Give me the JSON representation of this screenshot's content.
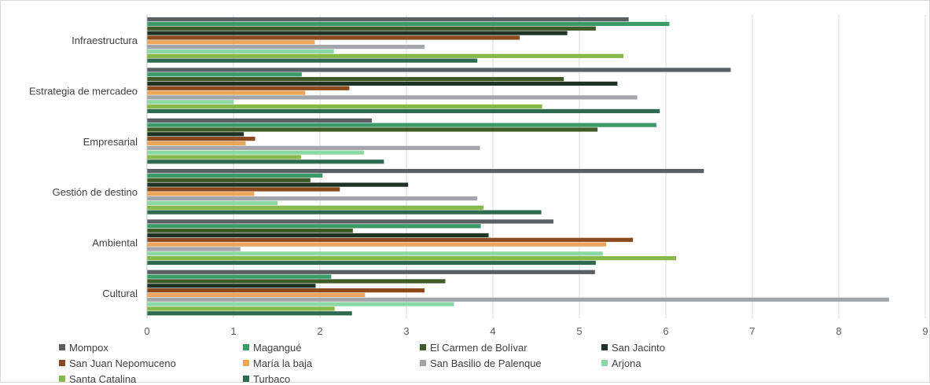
{
  "chart_data": {
    "type": "bar",
    "orientation": "horizontal",
    "categories": [
      "Infraestructura",
      "Estrategia de mercadeo",
      "Empresarial",
      "Gestión de destino",
      "Ambiental",
      "Cultural"
    ],
    "xlim": [
      0,
      9
    ],
    "xticks": [
      "0",
      "1",
      "2",
      "3",
      "4",
      "5",
      "6",
      "7",
      "8",
      "9"
    ],
    "grid": "vertical",
    "legend_position": "bottom",
    "series": [
      {
        "name": "Mompox",
        "color": "#595f63",
        "values": [
          5.57,
          6.75,
          2.6,
          6.44,
          4.7,
          5.18
        ]
      },
      {
        "name": "Magangué",
        "color": "#3a9a68",
        "values": [
          6.04,
          1.79,
          5.89,
          2.03,
          3.86,
          2.13
        ]
      },
      {
        "name": "El Carmen de Bolívar",
        "color": "#3f5a26",
        "values": [
          5.19,
          4.82,
          5.21,
          1.89,
          2.38,
          3.45
        ]
      },
      {
        "name": "San Jacinto",
        "color": "#1e3325",
        "values": [
          4.86,
          5.44,
          1.12,
          3.02,
          3.95,
          1.95
        ]
      },
      {
        "name": "San Juan Nepomuceno",
        "color": "#8b4a1d",
        "values": [
          4.31,
          2.34,
          1.25,
          2.23,
          5.62,
          3.21
        ]
      },
      {
        "name": "María la baja",
        "color": "#eda45b",
        "values": [
          1.94,
          1.83,
          1.14,
          1.24,
          5.31,
          2.52
        ]
      },
      {
        "name": "San Basilio de Palenque",
        "color": "#a2a6ab",
        "values": [
          3.21,
          5.67,
          3.85,
          3.82,
          1.08,
          8.58
        ]
      },
      {
        "name": "Arjona",
        "color": "#8dd7a4",
        "values": [
          2.16,
          1.0,
          2.51,
          1.51,
          5.27,
          3.55
        ]
      },
      {
        "name": "Santa Catalina",
        "color": "#86b84a",
        "values": [
          5.51,
          4.57,
          1.78,
          3.89,
          6.12,
          2.17
        ]
      },
      {
        "name": "Turbaco",
        "color": "#2e6a50",
        "values": [
          3.82,
          5.93,
          2.74,
          4.56,
          5.19,
          2.37
        ]
      }
    ]
  }
}
